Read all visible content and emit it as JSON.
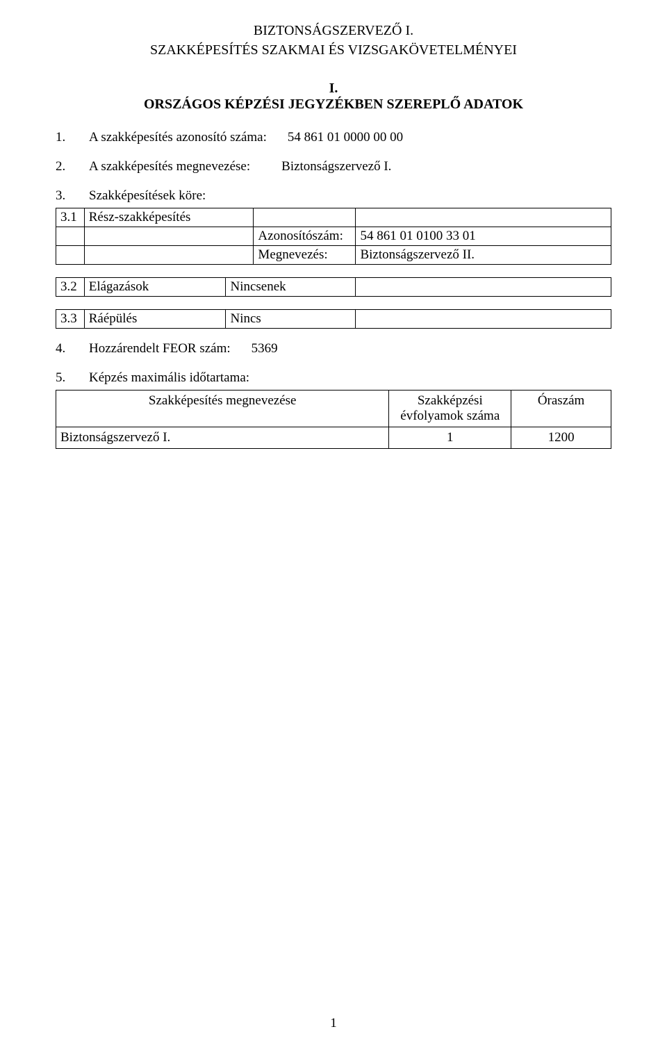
{
  "title": {
    "line1": "BIZTONSÁGSZERVEZŐ I.",
    "line2": "SZAKKÉPESÍTÉS SZAKMAI ÉS VIZSGAKÖVETELMÉNYEI"
  },
  "sectionI": {
    "roman": "I.",
    "heading": "ORSZÁGOS KÉPZÉSI JEGYZÉKBEN SZEREPLŐ ADATOK"
  },
  "item1": {
    "num": "1.",
    "label": "A szakképesítés azonosító száma:",
    "value": "54 861 01 0000 00 00"
  },
  "item2": {
    "num": "2.",
    "label": "A szakképesítés megnevezése:",
    "value": "Biztonságszervező I."
  },
  "item3": {
    "num": "3.",
    "label": "Szakképesítések köre:"
  },
  "table31": {
    "r1c1": "3.1",
    "r1c2": "Rész-szakképesítés",
    "r2c3": "Azonosítószám:",
    "r2c4": "54 861 01 0100 33 01",
    "r3c3": "Megnevezés:",
    "r3c4": "Biztonságszervező II."
  },
  "table32": {
    "r1c1": "3.2",
    "r1c2": "Elágazások",
    "r1c3": "Nincsenek"
  },
  "table33": {
    "r1c1": "3.3",
    "r1c2": "Ráépülés",
    "r1c3": "Nincs"
  },
  "item4": {
    "num": "4.",
    "label": "Hozzárendelt FEOR szám:",
    "value": "5369"
  },
  "item5": {
    "num": "5.",
    "label": "Képzés maximális időtartama:"
  },
  "table5": {
    "h1": "Szakképesítés megnevezése",
    "h2_line1": "Szakképzési",
    "h2_line2": "évfolyamok száma",
    "h3": "Óraszám",
    "r1c1": "Biztonságszervező I.",
    "r1c2": "1",
    "r1c3": "1200"
  },
  "pageNumber": "1",
  "colors": {
    "text": "#000000",
    "background": "#ffffff",
    "border": "#000000"
  }
}
